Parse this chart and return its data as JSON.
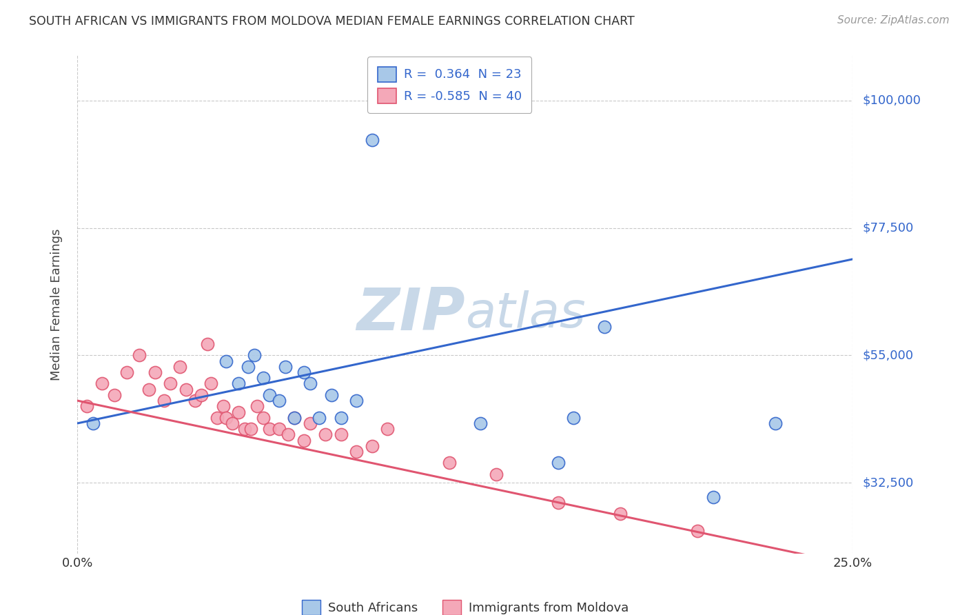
{
  "title": "SOUTH AFRICAN VS IMMIGRANTS FROM MOLDOVA MEDIAN FEMALE EARNINGS CORRELATION CHART",
  "source": "Source: ZipAtlas.com",
  "ylabel": "Median Female Earnings",
  "x_min": 0.0,
  "x_max": 0.25,
  "y_min": 20000,
  "y_max": 108000,
  "ytick_labels": [
    "$32,500",
    "$55,000",
    "$77,500",
    "$100,000"
  ],
  "ytick_values": [
    32500,
    55000,
    77500,
    100000
  ],
  "r_blue": 0.364,
  "n_blue": 23,
  "r_pink": -0.585,
  "n_pink": 40,
  "blue_color": "#A8C8E8",
  "pink_color": "#F4A8B8",
  "blue_line_color": "#3366CC",
  "pink_line_color": "#E05570",
  "title_color": "#333333",
  "source_color": "#999999",
  "watermark_color": "#C8D8E8",
  "legend_label_blue": "South Africans",
  "legend_label_pink": "Immigrants from Moldova",
  "blue_x": [
    0.005,
    0.048,
    0.052,
    0.055,
    0.057,
    0.06,
    0.062,
    0.065,
    0.067,
    0.07,
    0.073,
    0.075,
    0.078,
    0.082,
    0.085,
    0.09,
    0.095,
    0.13,
    0.155,
    0.16,
    0.17,
    0.205,
    0.225
  ],
  "blue_y": [
    43000,
    54000,
    50000,
    53000,
    55000,
    51000,
    48000,
    47000,
    53000,
    44000,
    52000,
    50000,
    44000,
    48000,
    44000,
    47000,
    93000,
    43000,
    36000,
    44000,
    60000,
    30000,
    43000
  ],
  "pink_x": [
    0.003,
    0.008,
    0.012,
    0.016,
    0.02,
    0.023,
    0.025,
    0.028,
    0.03,
    0.033,
    0.035,
    0.038,
    0.04,
    0.042,
    0.043,
    0.045,
    0.047,
    0.048,
    0.05,
    0.052,
    0.054,
    0.056,
    0.058,
    0.06,
    0.062,
    0.065,
    0.068,
    0.07,
    0.073,
    0.075,
    0.08,
    0.085,
    0.09,
    0.095,
    0.1,
    0.12,
    0.135,
    0.155,
    0.175,
    0.2
  ],
  "pink_y": [
    46000,
    50000,
    48000,
    52000,
    55000,
    49000,
    52000,
    47000,
    50000,
    53000,
    49000,
    47000,
    48000,
    57000,
    50000,
    44000,
    46000,
    44000,
    43000,
    45000,
    42000,
    42000,
    46000,
    44000,
    42000,
    42000,
    41000,
    44000,
    40000,
    43000,
    41000,
    41000,
    38000,
    39000,
    42000,
    36000,
    34000,
    29000,
    27000,
    24000
  ],
  "figsize": [
    14.06,
    8.92
  ],
  "dpi": 100
}
